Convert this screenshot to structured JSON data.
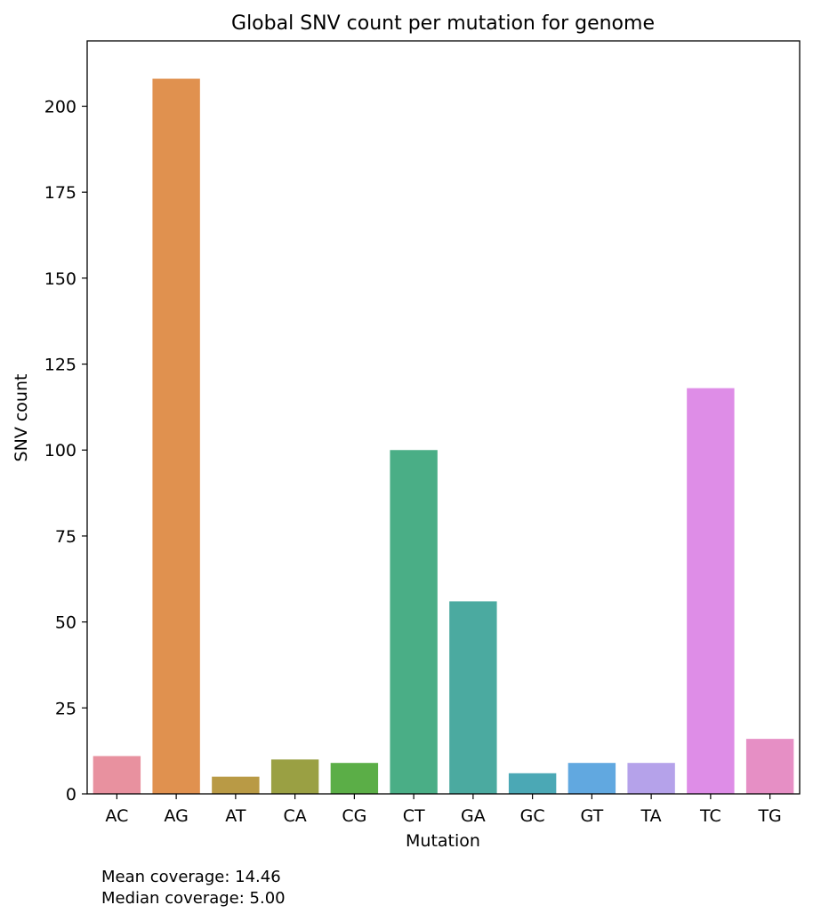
{
  "chart_data": {
    "type": "bar",
    "title": "Global SNV count per mutation for genome",
    "xlabel": "Mutation",
    "ylabel": "SNV count",
    "categories": [
      "AC",
      "AG",
      "AT",
      "CA",
      "CG",
      "CT",
      "GA",
      "GC",
      "GT",
      "TA",
      "TC",
      "TG"
    ],
    "values": [
      11,
      208,
      5,
      10,
      9,
      100,
      56,
      6,
      9,
      9,
      118,
      16
    ],
    "colors": [
      "#e8919f",
      "#e0914f",
      "#b99a45",
      "#9aa043",
      "#5bae47",
      "#4aae86",
      "#4baaa0",
      "#4ba8b5",
      "#61a8e0",
      "#b5a2ea",
      "#de8de7",
      "#e68fc5"
    ],
    "ylim": [
      0,
      219
    ],
    "yticks": [
      0,
      25,
      50,
      75,
      100,
      125,
      150,
      175,
      200
    ],
    "grid": false,
    "legend": "none"
  },
  "annotations": {
    "mean_coverage": "Mean coverage: 14.46",
    "median_coverage": "Median coverage: 5.00"
  }
}
